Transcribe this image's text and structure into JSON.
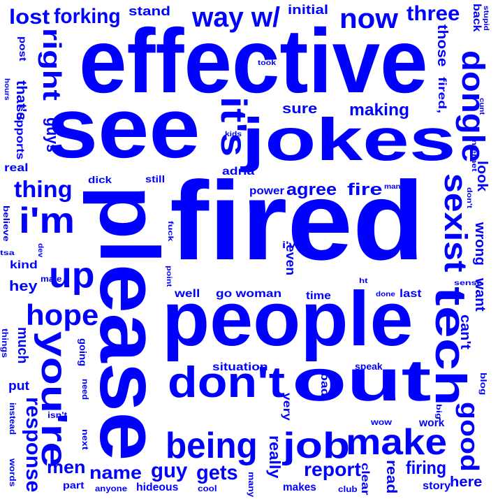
{
  "color": "#0000ff",
  "words": [
    "fired",
    "please",
    "effective",
    "see",
    "people",
    "jokes",
    "don't",
    "out",
    "tech",
    "you're",
    "make",
    "job",
    "i'm",
    "dongle",
    "sexist",
    "up",
    "being",
    "it's",
    "hope",
    "way w/",
    "now",
    "right",
    "three",
    "response",
    "good",
    "thing",
    "forking",
    "lost",
    "guy",
    "gets",
    "name",
    "report",
    "men",
    "firing",
    "here",
    "wrong",
    "want",
    "can't",
    "look",
    "agree",
    "fire",
    "making",
    "sure",
    "guys",
    "those",
    "that's",
    "back",
    "fired,",
    "initial",
    "stand",
    "adria",
    "power",
    "even",
    "hey",
    "kind",
    "much",
    "put",
    "really",
    "very",
    "bad",
    "situation",
    "well",
    "go woman",
    "time",
    "last",
    "done",
    "read",
    "clear",
    "story",
    "work",
    "wow",
    "speak",
    "blog",
    "big",
    "next",
    "need",
    "going",
    "isn't",
    "part",
    "anyone",
    "hideous",
    "cool",
    "many",
    "makes",
    "club",
    "post",
    "hours",
    "supports",
    "real",
    "believe",
    "tsa",
    "things",
    "instead",
    "words",
    "dick",
    "still",
    "fuck",
    "dev",
    "point",
    "male",
    "i've",
    "ht",
    "sense",
    "man",
    "don't",
    "internet",
    "cunt",
    "stupid",
    "took",
    "kids"
  ]
}
